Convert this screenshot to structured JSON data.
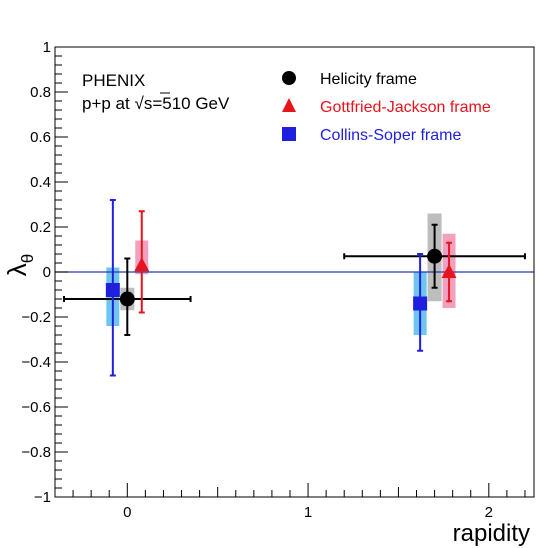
{
  "chart_data": {
    "type": "scatter",
    "title": "",
    "xlabel": "rapidity",
    "ylabel_main": "λ",
    "ylabel_sub": "θ",
    "xlim": [
      -0.4,
      2.25
    ],
    "ylim": [
      -1,
      1
    ],
    "x_ticks": [
      {
        "value": 0,
        "label": "0"
      },
      {
        "value": 1,
        "label": "1"
      },
      {
        "value": 2,
        "label": "2"
      }
    ],
    "y_ticks": [
      {
        "value": 1,
        "label": "1"
      },
      {
        "value": 0.8,
        "label": "0.8"
      },
      {
        "value": 0.6,
        "label": "0.6"
      },
      {
        "value": 0.4,
        "label": "0.4"
      },
      {
        "value": 0.2,
        "label": "0.2"
      },
      {
        "value": 0,
        "label": "0"
      },
      {
        "value": -0.2,
        "label": "−0.2"
      },
      {
        "value": -0.4,
        "label": "−0.4"
      },
      {
        "value": -0.6,
        "label": "−0.6"
      },
      {
        "value": -0.8,
        "label": "−0.8"
      },
      {
        "value": -1,
        "label": "−1"
      }
    ],
    "annotation": {
      "line1": "PHENIX",
      "line2_prefix": "p+p at ",
      "line2_sqrt": "√",
      "line2_suffix": "s=510 GeV"
    },
    "legend_position": "top-right",
    "reference_line": {
      "y": 0,
      "color": "#2b3aa8"
    },
    "series": [
      {
        "name": "Helicity frame",
        "marker": "circle",
        "color": "#000000",
        "syst_color": "#bdbdbd",
        "points": [
          {
            "x": 0.0,
            "y": -0.12,
            "xerr_lo": 0.35,
            "xerr_hi": 0.35,
            "yerr_lo": 0.16,
            "yerr_hi": 0.18,
            "syst_lo": 0.05,
            "syst_hi": 0.05
          },
          {
            "x": 1.7,
            "y": 0.07,
            "xerr_lo": 0.5,
            "xerr_hi": 0.5,
            "yerr_lo": 0.14,
            "yerr_hi": 0.14,
            "syst_lo": 0.2,
            "syst_hi": 0.19
          }
        ]
      },
      {
        "name": "Gottfried-Jackson frame",
        "marker": "triangle",
        "color": "#e8141c",
        "syst_color": "#f2a0c0",
        "points": [
          {
            "x": 0.08,
            "y": 0.03,
            "xerr_lo": 0,
            "xerr_hi": 0,
            "yerr_lo": 0.21,
            "yerr_hi": 0.24,
            "syst_lo": 0.04,
            "syst_hi": 0.11
          },
          {
            "x": 1.78,
            "y": 0.0,
            "xerr_lo": 0,
            "xerr_hi": 0,
            "yerr_lo": 0.13,
            "yerr_hi": 0.13,
            "syst_lo": 0.16,
            "syst_hi": 0.17
          }
        ]
      },
      {
        "name": "Collins-Soper frame",
        "marker": "square",
        "color": "#1f1fe0",
        "syst_color": "#6ec6f0",
        "points": [
          {
            "x": -0.08,
            "y": -0.08,
            "xerr_lo": 0,
            "xerr_hi": 0,
            "yerr_lo": 0.38,
            "yerr_hi": 0.4,
            "syst_lo": 0.16,
            "syst_hi": 0.1
          },
          {
            "x": 1.62,
            "y": -0.14,
            "xerr_lo": 0,
            "xerr_hi": 0,
            "yerr_lo": 0.21,
            "yerr_hi": 0.22,
            "syst_lo": 0.14,
            "syst_hi": 0.14
          }
        ]
      }
    ]
  }
}
